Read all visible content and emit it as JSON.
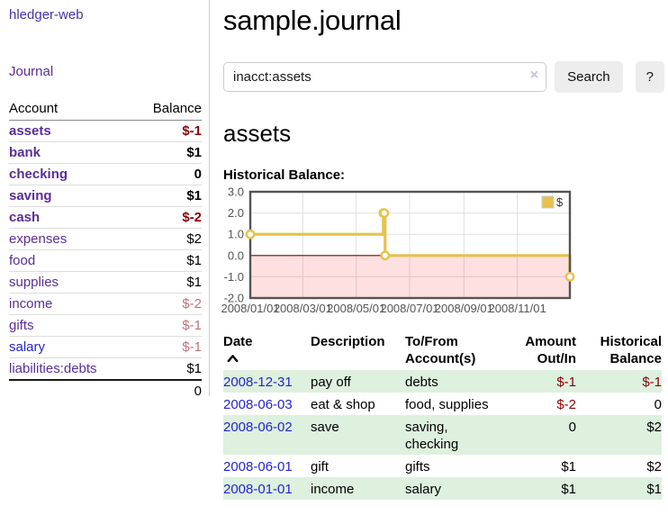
{
  "colors": {
    "brand_purple": "#4631a5",
    "link_purple": "#5b2d96",
    "link_blue": "#2525cf",
    "negative": "#8b0000",
    "negative_soft": "#c0727b",
    "row_green": "#def0de",
    "series_yellow": "#e6c14c",
    "zero_line": "#8b0000",
    "negative_region": "rgba(255,0,0,0.12)",
    "grid": "#e0e0e0",
    "plot_border": "#545454",
    "axis_text": "#545454"
  },
  "sidebar": {
    "brand": "hledger-web",
    "nav_journal": "Journal",
    "accounts_table": {
      "headers": {
        "account": "Account",
        "balance": "Balance"
      },
      "rows": [
        {
          "name": "assets",
          "depth": 1,
          "bold": true,
          "balance": "$-1",
          "balance_style": "neg-strong"
        },
        {
          "name": "bank",
          "depth": 2,
          "bold": true,
          "balance": "$1",
          "balance_style": ""
        },
        {
          "name": "checking",
          "depth": 3,
          "bold": true,
          "balance": "0",
          "balance_style": ""
        },
        {
          "name": "saving",
          "depth": 3,
          "bold": true,
          "balance": "$1",
          "balance_style": ""
        },
        {
          "name": "cash",
          "depth": 2,
          "bold": true,
          "balance": "$-2",
          "balance_style": "neg-strong"
        },
        {
          "name": "expenses",
          "depth": 1,
          "bold": false,
          "balance": "$2",
          "balance_style": ""
        },
        {
          "name": "food",
          "depth": 2,
          "bold": false,
          "balance": "$1",
          "balance_style": ""
        },
        {
          "name": "supplies",
          "depth": 2,
          "bold": false,
          "balance": "$1",
          "balance_style": ""
        },
        {
          "name": "income",
          "depth": 1,
          "bold": false,
          "balance": "$-2",
          "balance_style": "neg-soft"
        },
        {
          "name": "gifts",
          "depth": 2,
          "bold": false,
          "balance": "$-1",
          "balance_style": "neg-soft"
        },
        {
          "name": "salary",
          "depth": 2,
          "bold": false,
          "name_style": "blue",
          "balance": "$-1",
          "balance_style": "neg-soft"
        },
        {
          "name": "liabilities:debts",
          "depth": 1,
          "bold": false,
          "balance": "$1",
          "balance_style": ""
        }
      ],
      "total": "0"
    }
  },
  "header": {
    "title": "sample.journal"
  },
  "search": {
    "value": "inacct:assets",
    "clear_icon": "×",
    "button_label": "Search",
    "help_label": "?"
  },
  "account_page": {
    "heading": "assets",
    "chart_label": "Historical Balance:"
  },
  "chart_data": {
    "type": "line",
    "step": true,
    "title": "Historical Balance:",
    "series": [
      {
        "name": "$",
        "points": [
          [
            "2008-01-01",
            1
          ],
          [
            "2008-06-01",
            2
          ],
          [
            "2008-06-02",
            2
          ],
          [
            "2008-06-03",
            0
          ],
          [
            "2008-12-31",
            -1
          ]
        ]
      }
    ],
    "x_range": [
      "2008-01-01",
      "2008-12-31"
    ],
    "y_range": [
      -2,
      3
    ],
    "y_ticks": [
      {
        "value": 3,
        "label": "3.0"
      },
      {
        "value": 2,
        "label": "2.0"
      },
      {
        "value": 1,
        "label": "1.0"
      },
      {
        "value": 0,
        "label": "0.0"
      },
      {
        "value": -1,
        "label": "-1.0"
      },
      {
        "value": -2,
        "label": "-2.0"
      }
    ],
    "x_ticks": [
      {
        "date": "2008-01-01",
        "label": "2008/01/01"
      },
      {
        "date": "2008-03-01",
        "label": "2008/03/01"
      },
      {
        "date": "2008-05-01",
        "label": "2008/05/01"
      },
      {
        "date": "2008-07-01",
        "label": "2008/07/01"
      },
      {
        "date": "2008-09-01",
        "label": "2008/09/01"
      },
      {
        "date": "2008-11-01",
        "label": "2008/11/01"
      }
    ],
    "legend": {
      "label": "$",
      "position": "top-right"
    },
    "grid": true,
    "negative_region_shaded": true,
    "zero_line": true
  },
  "register_table": {
    "columns": {
      "date": {
        "label": "Date",
        "sort": "ascending"
      },
      "description": {
        "label": "Description"
      },
      "accounts": {
        "line1": "To/From",
        "line2": "Account(s)"
      },
      "amount": {
        "line1": "Amount",
        "line2": "Out/In"
      },
      "balance": {
        "line1": "Historical",
        "line2": "Balance"
      }
    },
    "rows": [
      {
        "date": "2008-12-31",
        "description": "pay off",
        "accounts": "debts",
        "amount": "$-1",
        "amount_neg": true,
        "balance": "$-1",
        "balance_neg": true
      },
      {
        "date": "2008-06-03",
        "description": "eat & shop",
        "accounts": "food, supplies",
        "amount": "$-2",
        "amount_neg": true,
        "balance": "0",
        "balance_neg": false
      },
      {
        "date": "2008-06-02",
        "description": "save",
        "accounts": "saving, checking",
        "amount": "0",
        "amount_neg": false,
        "balance": "$2",
        "balance_neg": false
      },
      {
        "date": "2008-06-01",
        "description": "gift",
        "accounts": "gifts",
        "amount": "$1",
        "amount_neg": false,
        "balance": "$2",
        "balance_neg": false
      },
      {
        "date": "2008-01-01",
        "description": "income",
        "accounts": "salary",
        "amount": "$1",
        "amount_neg": false,
        "balance": "$1",
        "balance_neg": false
      }
    ]
  }
}
